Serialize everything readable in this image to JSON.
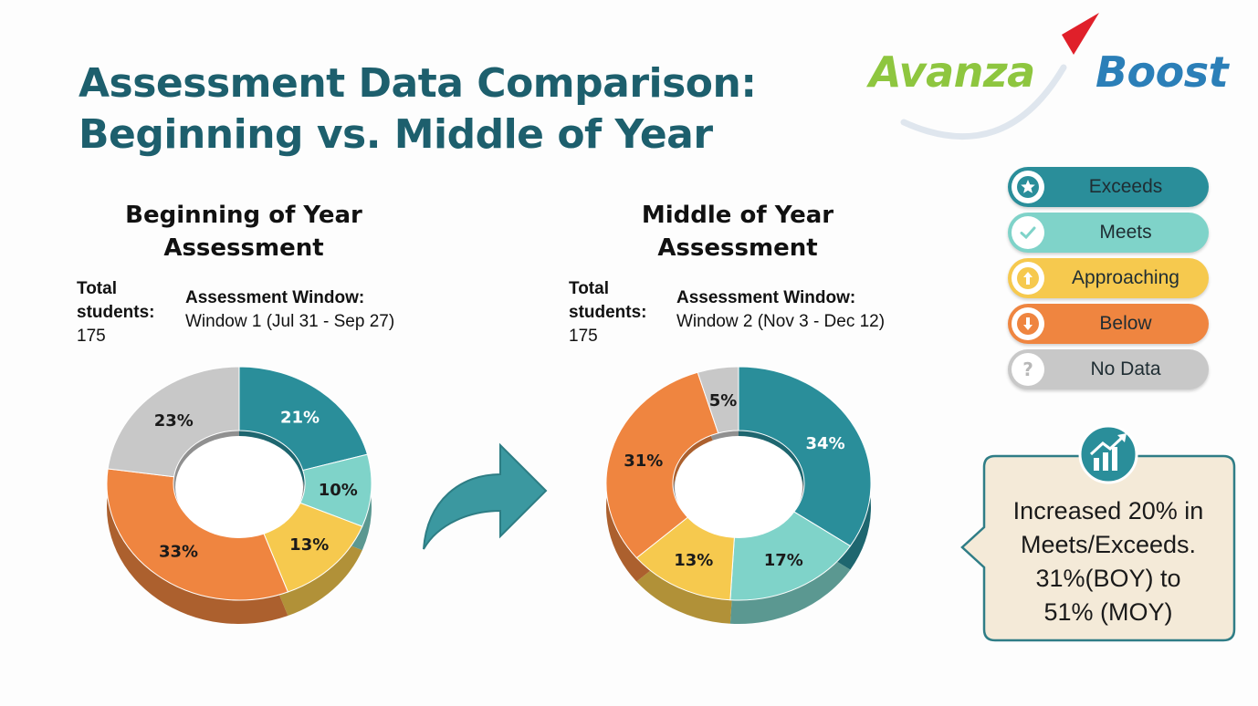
{
  "title": {
    "line1": "Assessment Data Comparison:",
    "line2": "Beginning vs. Middle of Year"
  },
  "logo": {
    "left_word": "Avanza",
    "right_word": "Boost",
    "colors": {
      "avanza": "#8ec63f",
      "boost": "#2b7fb8",
      "swoosh": "#e0202a"
    }
  },
  "legend": {
    "items": [
      {
        "label": "Exceeds",
        "icon": "star-icon",
        "color": "#2a8e9a"
      },
      {
        "label": "Meets",
        "icon": "check-icon",
        "color": "#7fd3c9"
      },
      {
        "label": "Approaching",
        "icon": "arrow-up-icon",
        "color": "#f6c94e"
      },
      {
        "label": "Below",
        "icon": "arrow-down-icon",
        "color": "#ef8540"
      },
      {
        "label": "No Data",
        "icon": "question-icon",
        "color": "#c8c8c8"
      }
    ]
  },
  "boy": {
    "title_line1": "Beginning of Year",
    "title_line2": "Assessment",
    "total_label_line1": "Total",
    "total_label_line2": "students:",
    "total_value": "175",
    "window_label": "Assessment Window:",
    "window_value": "Window 1 (Jul 31 - Sep 27)"
  },
  "moy": {
    "title_line1": "Middle of Year",
    "title_line2": "Assessment",
    "total_label_line1": "Total",
    "total_label_line2": "students:",
    "total_value": "175",
    "window_label": "Assessment Window:",
    "window_value": "Window 2 (Nov 3 - Dec 12)"
  },
  "callout": {
    "line1": "Increased 20% in",
    "line2": "Meets/Exceeds.",
    "line3": "31%(BOY) to",
    "line4": "51% (MOY)",
    "icon": "growth-chart-icon"
  },
  "chart_data": [
    {
      "type": "pie",
      "title": "Beginning of Year Assessment",
      "categories": [
        "Exceeds",
        "Meets",
        "Approaching",
        "Below",
        "No Data"
      ],
      "values": [
        21,
        10,
        13,
        33,
        23
      ],
      "labels": [
        "21%",
        "10%",
        "13%",
        "33%",
        "23%"
      ],
      "colors": [
        "#2a8e9a",
        "#7fd3c9",
        "#f6c94e",
        "#ef8540",
        "#c8c8c8"
      ]
    },
    {
      "type": "pie",
      "title": "Middle of Year Assessment",
      "categories": [
        "Exceeds",
        "Meets",
        "Approaching",
        "Below",
        "No Data"
      ],
      "values": [
        34,
        17,
        13,
        31,
        5
      ],
      "labels": [
        "34%",
        "17%",
        "13%",
        "31%",
        "5%"
      ],
      "colors": [
        "#2a8e9a",
        "#7fd3c9",
        "#f6c94e",
        "#ef8540",
        "#c8c8c8"
      ]
    }
  ]
}
